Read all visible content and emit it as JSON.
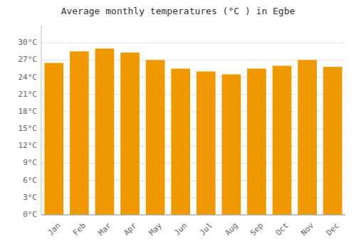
{
  "chart_data": {
    "type": "bar",
    "title": "Average monthly temperatures (°C ) in Egbe",
    "categories": [
      "Jan",
      "Feb",
      "Mar",
      "Apr",
      "May",
      "Jun",
      "Jul",
      "Aug",
      "Sep",
      "Oct",
      "Nov",
      "Dec"
    ],
    "values": [
      26.5,
      28.5,
      29.0,
      28.3,
      27.0,
      25.5,
      25.0,
      24.5,
      25.5,
      26.0,
      27.0,
      25.8
    ],
    "color": "#F09800",
    "ylim": [
      0,
      33
    ],
    "yticks": [
      {
        "value": 0,
        "label": "0°C"
      },
      {
        "value": 3,
        "label": "3°C"
      },
      {
        "value": 6,
        "label": "6°C"
      },
      {
        "value": 9,
        "label": "9°C"
      },
      {
        "value": 12,
        "label": "12°C"
      },
      {
        "value": 15,
        "label": "15°C"
      },
      {
        "value": 18,
        "label": "18°C"
      },
      {
        "value": 21,
        "label": "21°C"
      },
      {
        "value": 24,
        "label": "24°C"
      },
      {
        "value": 27,
        "label": "27°C"
      },
      {
        "value": 30,
        "label": "30°C"
      }
    ],
    "grid": true
  }
}
